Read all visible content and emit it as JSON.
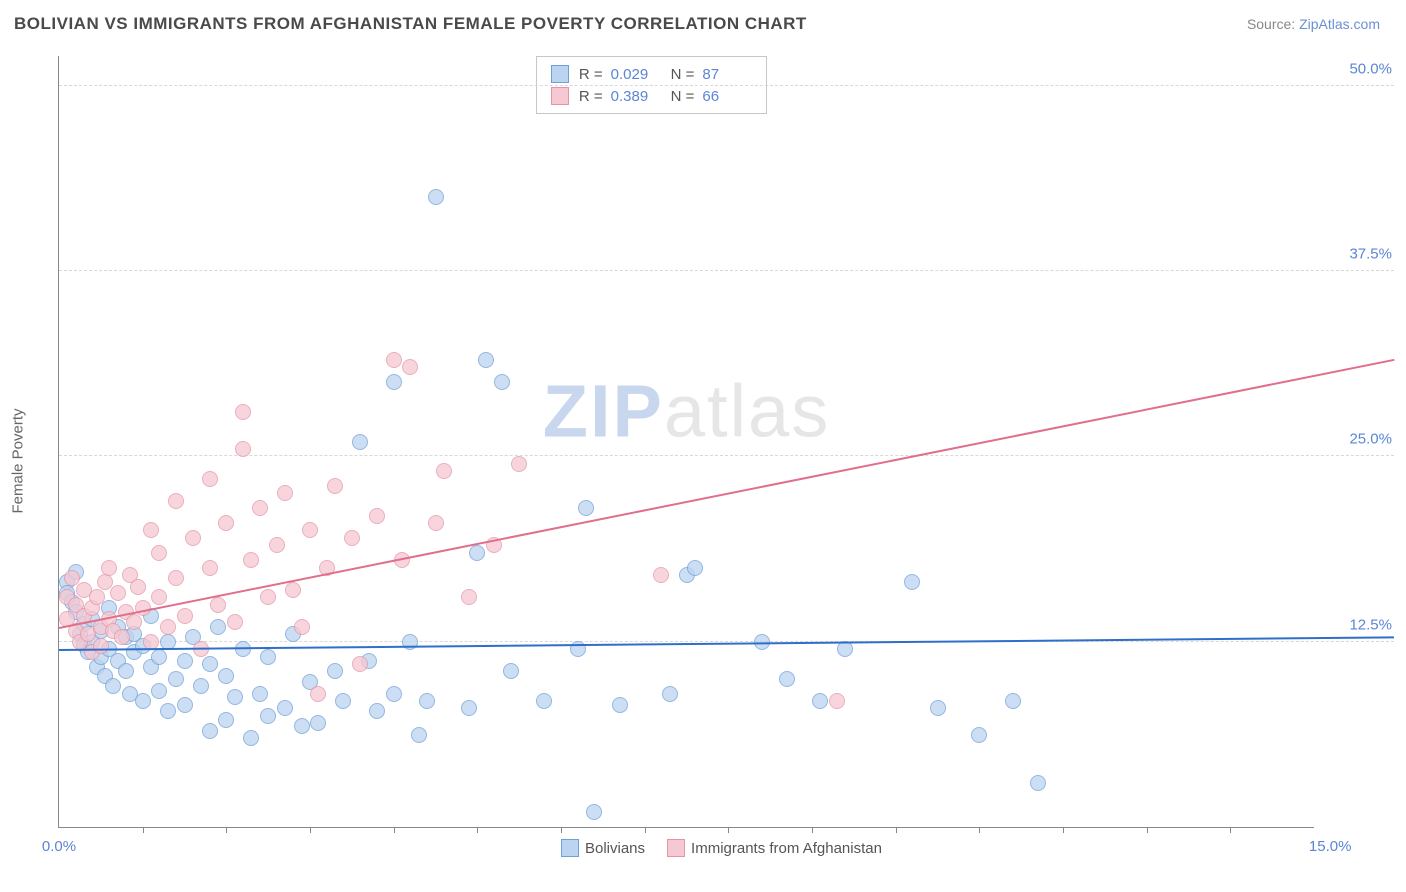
{
  "header": {
    "title": "BOLIVIAN VS IMMIGRANTS FROM AFGHANISTAN FEMALE POVERTY CORRELATION CHART",
    "source_prefix": "Source: ",
    "source_link": "ZipAtlas.com"
  },
  "chart": {
    "type": "scatter",
    "ylabel": "Female Poverty",
    "background_color": "#ffffff",
    "grid_color": "#d8d8d8",
    "axis_color": "#888888",
    "tick_label_color": "#5b85d6",
    "xlim": [
      0,
      15
    ],
    "ylim": [
      0,
      52
    ],
    "yticks": [
      {
        "v": 12.5,
        "label": "12.5%"
      },
      {
        "v": 25.0,
        "label": "25.0%"
      },
      {
        "v": 37.5,
        "label": "37.5%"
      },
      {
        "v": 50.0,
        "label": "50.0%"
      }
    ],
    "xticks_minor": [
      1,
      2,
      3,
      4,
      5,
      6,
      7,
      8,
      9,
      10,
      11,
      12,
      13,
      14
    ],
    "xtick_labels": [
      {
        "v": 0,
        "label": "0.0%"
      },
      {
        "v": 15,
        "label": "15.0%",
        "align": "right"
      }
    ],
    "watermark": {
      "part1": "ZIP",
      "part2": "atlas"
    },
    "series": [
      {
        "name": "Bolivians",
        "fill": "#bcd4ef",
        "stroke": "#6f9fd8",
        "marker_radius": 8,
        "marker_opacity": 0.75,
        "regression": {
          "color": "#2f6fc9",
          "width": 2,
          "y_at_xmin": 12.0,
          "y_at_xmax": 12.8
        },
        "r_value": "0.029",
        "n_value": "87",
        "points": [
          [
            0.1,
            16.5
          ],
          [
            0.1,
            15.8
          ],
          [
            0.15,
            15.2
          ],
          [
            0.2,
            14.5
          ],
          [
            0.2,
            17.2
          ],
          [
            0.25,
            13.0
          ],
          [
            0.3,
            12.3
          ],
          [
            0.3,
            13.7
          ],
          [
            0.35,
            11.8
          ],
          [
            0.4,
            12.5
          ],
          [
            0.4,
            14.0
          ],
          [
            0.45,
            10.8
          ],
          [
            0.5,
            11.5
          ],
          [
            0.5,
            13.2
          ],
          [
            0.55,
            10.2
          ],
          [
            0.6,
            12.0
          ],
          [
            0.6,
            14.8
          ],
          [
            0.65,
            9.5
          ],
          [
            0.7,
            11.2
          ],
          [
            0.7,
            13.5
          ],
          [
            0.8,
            12.8
          ],
          [
            0.8,
            10.5
          ],
          [
            0.85,
            9.0
          ],
          [
            0.9,
            11.8
          ],
          [
            0.9,
            13.0
          ],
          [
            1.0,
            12.2
          ],
          [
            1.0,
            8.5
          ],
          [
            1.1,
            10.8
          ],
          [
            1.1,
            14.2
          ],
          [
            1.2,
            11.5
          ],
          [
            1.2,
            9.2
          ],
          [
            1.3,
            12.5
          ],
          [
            1.3,
            7.8
          ],
          [
            1.4,
            10.0
          ],
          [
            1.5,
            11.2
          ],
          [
            1.5,
            8.2
          ],
          [
            1.6,
            12.8
          ],
          [
            1.7,
            9.5
          ],
          [
            1.8,
            6.5
          ],
          [
            1.8,
            11.0
          ],
          [
            1.9,
            13.5
          ],
          [
            2.0,
            7.2
          ],
          [
            2.0,
            10.2
          ],
          [
            2.1,
            8.8
          ],
          [
            2.2,
            12.0
          ],
          [
            2.3,
            6.0
          ],
          [
            2.4,
            9.0
          ],
          [
            2.5,
            7.5
          ],
          [
            2.5,
            11.5
          ],
          [
            2.7,
            8.0
          ],
          [
            2.8,
            13.0
          ],
          [
            2.9,
            6.8
          ],
          [
            3.0,
            9.8
          ],
          [
            3.1,
            7.0
          ],
          [
            3.3,
            10.5
          ],
          [
            3.4,
            8.5
          ],
          [
            3.6,
            26.0
          ],
          [
            3.7,
            11.2
          ],
          [
            3.8,
            7.8
          ],
          [
            4.0,
            9.0
          ],
          [
            4.0,
            30.0
          ],
          [
            4.2,
            12.5
          ],
          [
            4.3,
            6.2
          ],
          [
            4.4,
            8.5
          ],
          [
            4.5,
            42.5
          ],
          [
            4.9,
            8.0
          ],
          [
            5.0,
            18.5
          ],
          [
            5.1,
            31.5
          ],
          [
            5.3,
            30.0
          ],
          [
            5.4,
            10.5
          ],
          [
            5.8,
            8.5
          ],
          [
            6.2,
            12.0
          ],
          [
            6.3,
            21.5
          ],
          [
            6.4,
            1.0
          ],
          [
            6.7,
            8.2
          ],
          [
            7.3,
            9.0
          ],
          [
            7.5,
            17.0
          ],
          [
            7.6,
            17.5
          ],
          [
            8.4,
            12.5
          ],
          [
            8.7,
            10.0
          ],
          [
            9.1,
            8.5
          ],
          [
            9.4,
            12.0
          ],
          [
            10.2,
            16.5
          ],
          [
            10.5,
            8.0
          ],
          [
            11.0,
            6.2
          ],
          [
            11.4,
            8.5
          ],
          [
            11.7,
            3.0
          ]
        ]
      },
      {
        "name": "Immigrants from Afghanistan",
        "fill": "#f6c8d2",
        "stroke": "#e494a8",
        "marker_radius": 8,
        "marker_opacity": 0.75,
        "regression": {
          "color": "#e06f8b",
          "width": 2,
          "y_at_xmin": 13.5,
          "y_at_xmax": 30.5
        },
        "r_value": "0.389",
        "n_value": "66",
        "points": [
          [
            0.1,
            15.5
          ],
          [
            0.1,
            14.0
          ],
          [
            0.15,
            16.8
          ],
          [
            0.2,
            13.2
          ],
          [
            0.2,
            15.0
          ],
          [
            0.25,
            12.5
          ],
          [
            0.3,
            14.2
          ],
          [
            0.3,
            16.0
          ],
          [
            0.35,
            13.0
          ],
          [
            0.4,
            14.8
          ],
          [
            0.4,
            11.8
          ],
          [
            0.45,
            15.5
          ],
          [
            0.5,
            13.5
          ],
          [
            0.5,
            12.2
          ],
          [
            0.55,
            16.5
          ],
          [
            0.6,
            14.0
          ],
          [
            0.6,
            17.5
          ],
          [
            0.65,
            13.2
          ],
          [
            0.7,
            15.8
          ],
          [
            0.75,
            12.8
          ],
          [
            0.8,
            14.5
          ],
          [
            0.85,
            17.0
          ],
          [
            0.9,
            13.8
          ],
          [
            0.95,
            16.2
          ],
          [
            1.0,
            14.8
          ],
          [
            1.1,
            20.0
          ],
          [
            1.1,
            12.5
          ],
          [
            1.2,
            15.5
          ],
          [
            1.2,
            18.5
          ],
          [
            1.3,
            13.5
          ],
          [
            1.4,
            16.8
          ],
          [
            1.4,
            22.0
          ],
          [
            1.5,
            14.2
          ],
          [
            1.6,
            19.5
          ],
          [
            1.7,
            12.0
          ],
          [
            1.8,
            17.5
          ],
          [
            1.8,
            23.5
          ],
          [
            1.9,
            15.0
          ],
          [
            2.0,
            20.5
          ],
          [
            2.1,
            13.8
          ],
          [
            2.2,
            25.5
          ],
          [
            2.2,
            28.0
          ],
          [
            2.3,
            18.0
          ],
          [
            2.4,
            21.5
          ],
          [
            2.5,
            15.5
          ],
          [
            2.6,
            19.0
          ],
          [
            2.7,
            22.5
          ],
          [
            2.8,
            16.0
          ],
          [
            2.9,
            13.5
          ],
          [
            3.0,
            20.0
          ],
          [
            3.1,
            9.0
          ],
          [
            3.2,
            17.5
          ],
          [
            3.3,
            23.0
          ],
          [
            3.5,
            19.5
          ],
          [
            3.6,
            11.0
          ],
          [
            3.8,
            21.0
          ],
          [
            4.0,
            31.5
          ],
          [
            4.1,
            18.0
          ],
          [
            4.2,
            31.0
          ],
          [
            4.5,
            20.5
          ],
          [
            4.6,
            24.0
          ],
          [
            4.9,
            15.5
          ],
          [
            5.2,
            19.0
          ],
          [
            5.5,
            24.5
          ],
          [
            7.2,
            17.0
          ],
          [
            9.3,
            8.5
          ]
        ]
      }
    ],
    "r_legend_labels": {
      "r": "R =",
      "n": "N ="
    },
    "series_legend": [
      {
        "swatch_fill": "#bcd4ef",
        "swatch_stroke": "#6f9fd8",
        "label": "Bolivians"
      },
      {
        "swatch_fill": "#f6c8d2",
        "swatch_stroke": "#e494a8",
        "label": "Immigrants from Afghanistan"
      }
    ]
  }
}
